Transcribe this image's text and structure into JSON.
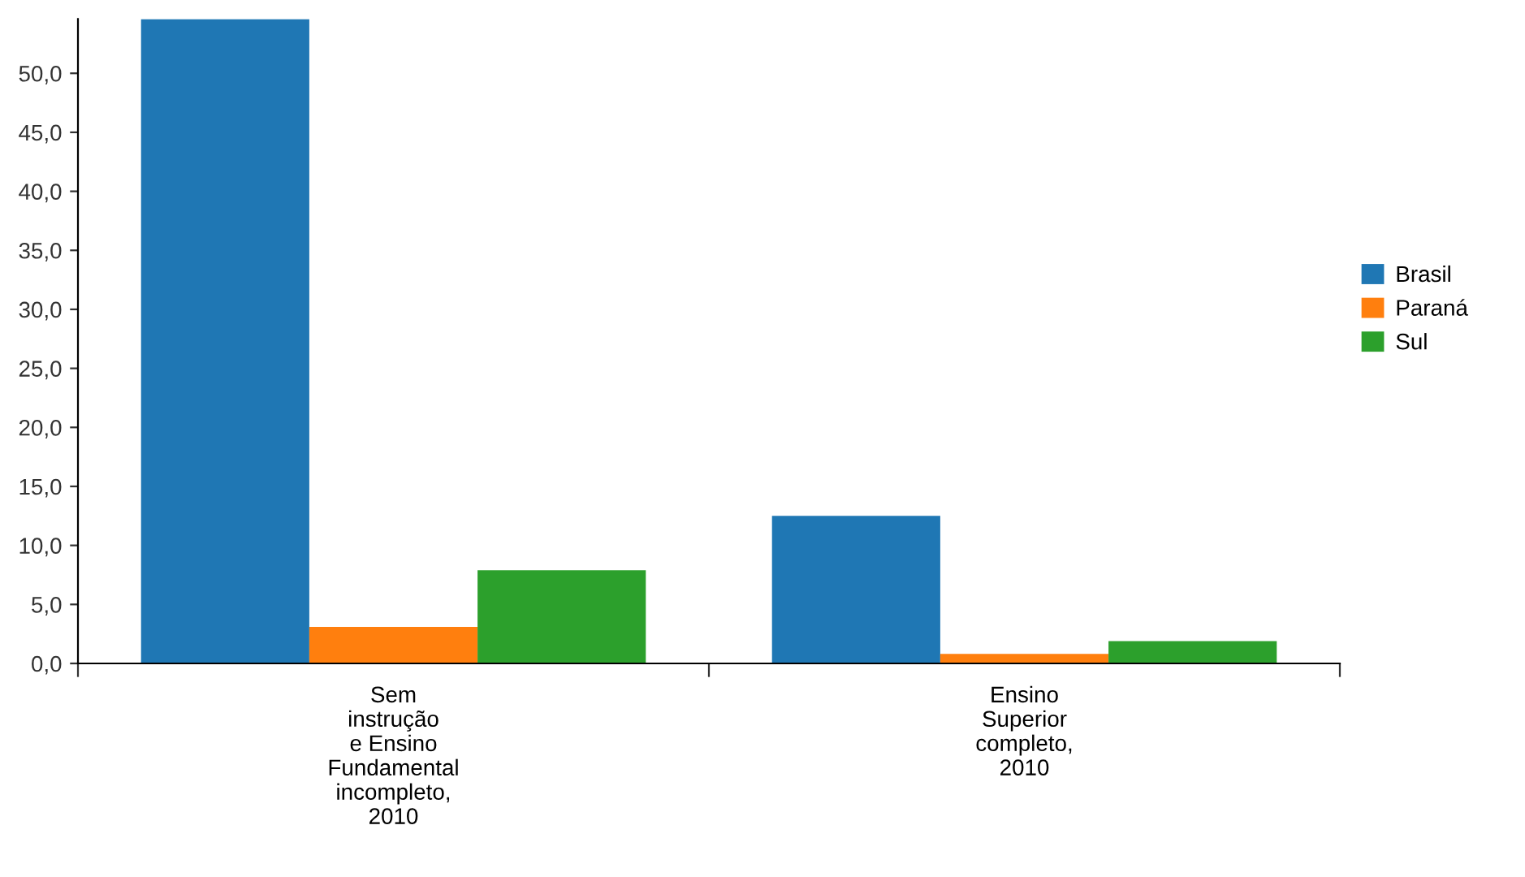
{
  "chart_data": {
    "type": "bar",
    "categories": [
      "Sem\ninstrução\ne Ensino\nFundamental\nincompleto,\n2010",
      "Ensino\nSuperior\ncompleto,\n2010"
    ],
    "series": [
      {
        "name": "Brasil",
        "color": "#1f77b4",
        "values": [
          54.6,
          12.5
        ]
      },
      {
        "name": "Paraná",
        "color": "#ff7f0e",
        "values": [
          3.1,
          0.8
        ]
      },
      {
        "name": "Sul",
        "color": "#2ca02c",
        "values": [
          7.9,
          1.9
        ]
      }
    ],
    "ylim": [
      0,
      54.6
    ],
    "yticks": [
      {
        "value": 0,
        "label": "0,0"
      },
      {
        "value": 5,
        "label": "5,0"
      },
      {
        "value": 10,
        "label": "10,0"
      },
      {
        "value": 15,
        "label": "15,0"
      },
      {
        "value": 20,
        "label": "20,0"
      },
      {
        "value": 25,
        "label": "25,0"
      },
      {
        "value": 30,
        "label": "30,0"
      },
      {
        "value": 35,
        "label": "35,0"
      },
      {
        "value": 40,
        "label": "40,0"
      },
      {
        "value": 45,
        "label": "45,0"
      },
      {
        "value": 50,
        "label": "50,0"
      }
    ],
    "grid": false,
    "legend": "right"
  }
}
